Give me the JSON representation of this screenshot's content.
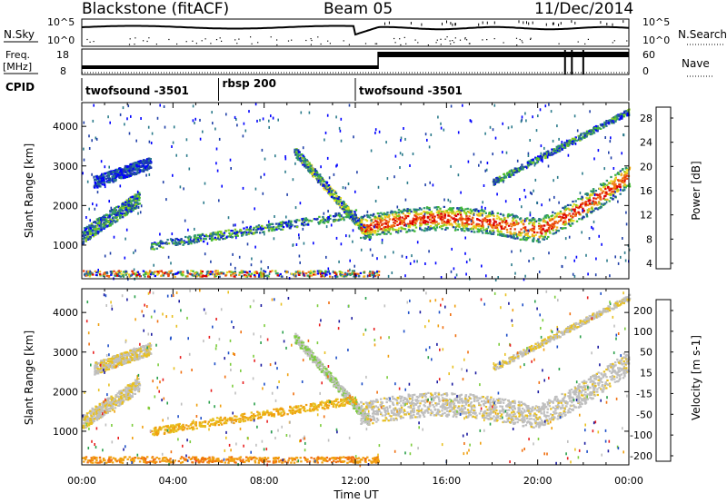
{
  "header": {
    "station": "Blackstone (fitACF)",
    "beam": "Beam 05",
    "date": "11/Dec/2014"
  },
  "noise_panel": {
    "left_label": "N.Sky",
    "right_label": "N.Search",
    "left_ticks": [
      "10^5",
      "10^0"
    ],
    "right_ticks": [
      "10^5",
      "10^0"
    ]
  },
  "freq_panel": {
    "left_label_line1": "Freq.",
    "left_label_line2": "[MHz]",
    "left_ticks": [
      "18",
      "8"
    ],
    "right_label": "Nave",
    "right_ticks": [
      "60",
      "0"
    ]
  },
  "cpid": {
    "label": "CPID",
    "segments": [
      {
        "name": "twofsound -3501",
        "start_hour": 0,
        "end_hour": 6
      },
      {
        "name": "rbsp 200",
        "start_hour": 6,
        "end_hour": 12
      },
      {
        "name": "twofsound -3501",
        "start_hour": 12,
        "end_hour": 24
      }
    ]
  },
  "power_colorbar": {
    "label": "Power [dB]",
    "ticks": [
      "28",
      "24",
      "20",
      "16",
      "12",
      "8",
      "4"
    ],
    "colors": [
      "#0000ff",
      "#1f3fa8",
      "#2a7a8a",
      "#2f9a6a",
      "#44bb33",
      "#88cc22",
      "#e8e020",
      "#f0b020",
      "#f07a10",
      "#e84010",
      "#dd0000"
    ]
  },
  "velocity_colorbar": {
    "label": "Velocity [m s-1]",
    "ticks": [
      "200",
      "100",
      "50",
      "15",
      "-15",
      "-50",
      "-100",
      "-200"
    ],
    "colors": [
      "#1a1aa0",
      "#1e4fc8",
      "#2aa04a",
      "#7ccc3c",
      "#bfbfbf",
      "#e8c020",
      "#f0a010",
      "#f07010",
      "#e82020"
    ]
  },
  "chart_data": [
    {
      "type": "heatmap",
      "name": "power",
      "xlabel": "",
      "ylabel": "Slant Range [km]",
      "xlim": [
        0,
        24
      ],
      "ylim": [
        150,
        4600
      ],
      "yticks": [
        1000,
        2000,
        3000,
        4000
      ],
      "xticks": [
        "00:00",
        "04:00",
        "08:00",
        "12:00",
        "16:00",
        "20:00",
        "00:00"
      ],
      "value_range_db": [
        0,
        30
      ]
    },
    {
      "type": "heatmap",
      "name": "velocity",
      "xlabel": "Time UT",
      "ylabel": "Slant Range [km]",
      "xlim": [
        0,
        24
      ],
      "ylim": [
        150,
        4600
      ],
      "yticks": [
        1000,
        2000,
        3000,
        4000
      ],
      "xticks": [
        "00:00",
        "04:00",
        "08:00",
        "12:00",
        "16:00",
        "20:00",
        "00:00"
      ],
      "value_range_ms": [
        -250,
        250
      ]
    }
  ]
}
